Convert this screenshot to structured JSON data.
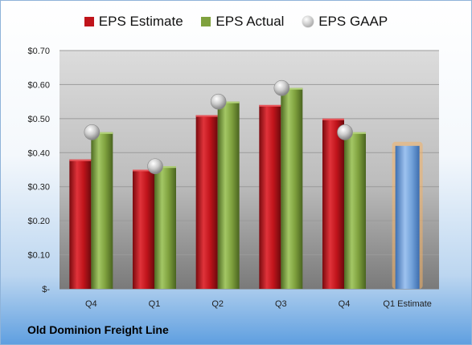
{
  "legend": {
    "estimate": "EPS Estimate",
    "actual": "EPS Actual",
    "gaap": "EPS GAAP"
  },
  "company": "Old Dominion Freight Line",
  "colors": {
    "estimate": "#c0141b",
    "actual": "#7fa13e",
    "gaap": "#bdbdbd",
    "forecast": "#6f9fd8",
    "forecast_glow": "#f4b266"
  },
  "chart_data": {
    "type": "bar",
    "categories": [
      "Q4",
      "Q1",
      "Q2",
      "Q3",
      "Q4",
      "Q1 Estimate"
    ],
    "series": [
      {
        "name": "EPS Estimate",
        "values": [
          0.38,
          0.35,
          0.51,
          0.54,
          0.5,
          null
        ]
      },
      {
        "name": "EPS Actual",
        "values": [
          0.46,
          0.36,
          0.55,
          0.59,
          0.46,
          null
        ]
      },
      {
        "name": "EPS GAAP",
        "values": [
          0.46,
          0.36,
          0.55,
          0.59,
          0.46,
          null
        ]
      },
      {
        "values": [
          null,
          null,
          null,
          null,
          null,
          0.42
        ]
      }
    ],
    "ylim": [
      0,
      0.7
    ],
    "yticks": [
      0,
      0.1,
      0.2,
      0.3,
      0.4,
      0.5,
      0.6,
      0.7
    ],
    "ytick_labels": [
      "$-",
      "$0.10",
      "$0.20",
      "$0.30",
      "$0.40",
      "$0.50",
      "$0.60",
      "$0.70"
    ],
    "grid": true,
    "legend": "top"
  }
}
